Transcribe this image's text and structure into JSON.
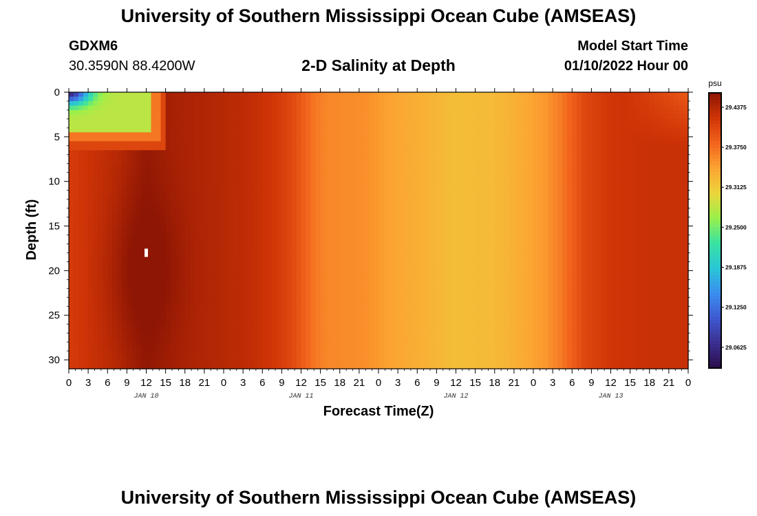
{
  "header": {
    "title": "University of Southern Mississippi Ocean Cube (AMSEAS)",
    "station_id": "GDXM6",
    "coordinates": "30.3590N  88.4200W",
    "plot_title": "2-D Salinity at Depth",
    "model_start_label": "Model Start Time",
    "model_start_value": "01/10/2022 Hour 00"
  },
  "footer": {
    "title": "University of Southern Mississippi Ocean Cube (AMSEAS)"
  },
  "chart_data": {
    "type": "heatmap",
    "title": "2-D Salinity at Depth",
    "xlabel": "Forecast Time(Z)",
    "ylabel": "Depth (ft)",
    "x_range_hours": [
      0,
      96
    ],
    "y_range_ft": [
      0,
      31
    ],
    "x_tick_hours": [
      0,
      3,
      6,
      9,
      12,
      15,
      18,
      21,
      24,
      27,
      30,
      33,
      36,
      39,
      42,
      45,
      48,
      51,
      54,
      57,
      60,
      63,
      66,
      69,
      72,
      75,
      78,
      81,
      84,
      87,
      90,
      93,
      96
    ],
    "x_tick_labels": [
      "0",
      "3",
      "6",
      "9",
      "12",
      "15",
      "18",
      "21",
      "0",
      "3",
      "6",
      "9",
      "12",
      "15",
      "18",
      "21",
      "0",
      "3",
      "6",
      "9",
      "12",
      "15",
      "18",
      "21",
      "0",
      "3",
      "6",
      "9",
      "12",
      "15",
      "18",
      "21",
      "0"
    ],
    "day_labels": [
      {
        "hour": 12,
        "label": "JAN 10"
      },
      {
        "hour": 36,
        "label": "JAN 11"
      },
      {
        "hour": 60,
        "label": "JAN 12"
      },
      {
        "hour": 84,
        "label": "JAN 13"
      }
    ],
    "y_ticks": [
      0,
      5,
      10,
      15,
      20,
      25,
      30
    ],
    "colorbar": {
      "unit": "psu",
      "min": 29.03,
      "max": 29.46,
      "tick_values": [
        29.4375,
        29.375,
        29.3125,
        29.25,
        29.1875,
        29.125,
        29.0625
      ],
      "tick_labels": [
        "29.4375",
        "29.3750",
        "29.3125",
        "29.2500",
        "29.1875",
        "29.1250",
        "29.0625"
      ],
      "colors": [
        "#2a0e4a",
        "#3b2f8f",
        "#3f59d1",
        "#3a8fef",
        "#29c6d6",
        "#3ae2a2",
        "#9af04b",
        "#ecd53c",
        "#fca332",
        "#f2631c",
        "#cf3406",
        "#8e1604"
      ]
    },
    "profile_salinity_psu": [
      {
        "hour": 0,
        "value": 29.415
      },
      {
        "hour": 8,
        "value": 29.435
      },
      {
        "hour": 12,
        "value": 29.455
      },
      {
        "hour": 16,
        "value": 29.445
      },
      {
        "hour": 20,
        "value": 29.44
      },
      {
        "hour": 24,
        "value": 29.436
      },
      {
        "hour": 28,
        "value": 29.43
      },
      {
        "hour": 32,
        "value": 29.418
      },
      {
        "hour": 35,
        "value": 29.4
      },
      {
        "hour": 36.5,
        "value": 29.385
      },
      {
        "hour": 38,
        "value": 29.37
      },
      {
        "hour": 40,
        "value": 29.36
      },
      {
        "hour": 46,
        "value": 29.355
      },
      {
        "hour": 50,
        "value": 29.342
      },
      {
        "hour": 56,
        "value": 29.33
      },
      {
        "hour": 60,
        "value": 29.322
      },
      {
        "hour": 66,
        "value": 29.325
      },
      {
        "hour": 70,
        "value": 29.335
      },
      {
        "hour": 74,
        "value": 29.35
      },
      {
        "hour": 76,
        "value": 29.365
      },
      {
        "hour": 78,
        "value": 29.385
      },
      {
        "hour": 80,
        "value": 29.405
      },
      {
        "hour": 84,
        "value": 29.42
      },
      {
        "hour": 90,
        "value": 29.425
      },
      {
        "hour": 96,
        "value": 29.425
      }
    ],
    "fresh_lens": {
      "hour_start": 0,
      "hour_end": 14,
      "depth_top_ft": 0,
      "depth_bottom_ft": 5.5,
      "core_value_psu": 29.06,
      "mid_value_psu": 29.28,
      "edge_value_psu": 29.37
    },
    "surface_freshening_late": {
      "hour_start": 86,
      "hour_end": 96,
      "depth_bottom_ft": 6,
      "min_value_psu": 29.39
    },
    "deep_max_center": {
      "hour": 12,
      "depth_ft": 20,
      "value_psu": 29.465
    },
    "missing_cell": {
      "hour": 12,
      "depth_ft": 18
    }
  }
}
